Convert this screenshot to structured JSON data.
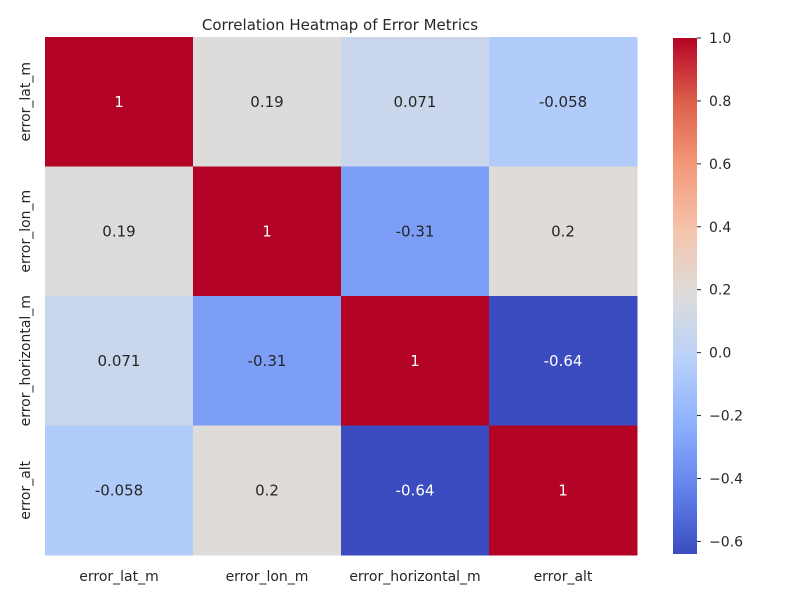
{
  "chart_data": {
    "type": "heatmap",
    "title": "Correlation Heatmap of Error Metrics",
    "xlabel": "",
    "ylabel": "",
    "x_categories": [
      "error_lat_m",
      "error_lon_m",
      "error_horizontal_m",
      "error_alt"
    ],
    "y_categories": [
      "error_lat_m",
      "error_lon_m",
      "error_horizontal_m",
      "error_alt"
    ],
    "values": [
      [
        1,
        0.19,
        0.071,
        -0.058
      ],
      [
        0.19,
        1,
        -0.31,
        0.2
      ],
      [
        0.071,
        -0.31,
        1,
        -0.64
      ],
      [
        -0.058,
        0.2,
        -0.64,
        1
      ]
    ],
    "cell_labels": [
      [
        "1",
        "0.19",
        "0.071",
        "-0.058"
      ],
      [
        "0.19",
        "1",
        "-0.31",
        "0.2"
      ],
      [
        "0.071",
        "-0.31",
        "1",
        "-0.64"
      ],
      [
        "-0.058",
        "0.2",
        "-0.64",
        "1"
      ]
    ],
    "colormap": "coolwarm",
    "vmin": -0.64,
    "vmax": 1,
    "colorbar_ticks": [
      1.0,
      0.8,
      0.6,
      0.4,
      0.2,
      0.0,
      -0.2,
      -0.4,
      -0.6
    ],
    "colorbar_tick_labels": [
      "1.0",
      "0.8",
      "0.6",
      "0.4",
      "0.2",
      "0.0",
      "−0.2",
      "−0.4",
      "−0.6"
    ],
    "colorbar_placement": "right",
    "grid": false,
    "colors": {
      "low": "#3b4cc0",
      "mid": "#dddcdc",
      "high": "#b40426"
    }
  }
}
